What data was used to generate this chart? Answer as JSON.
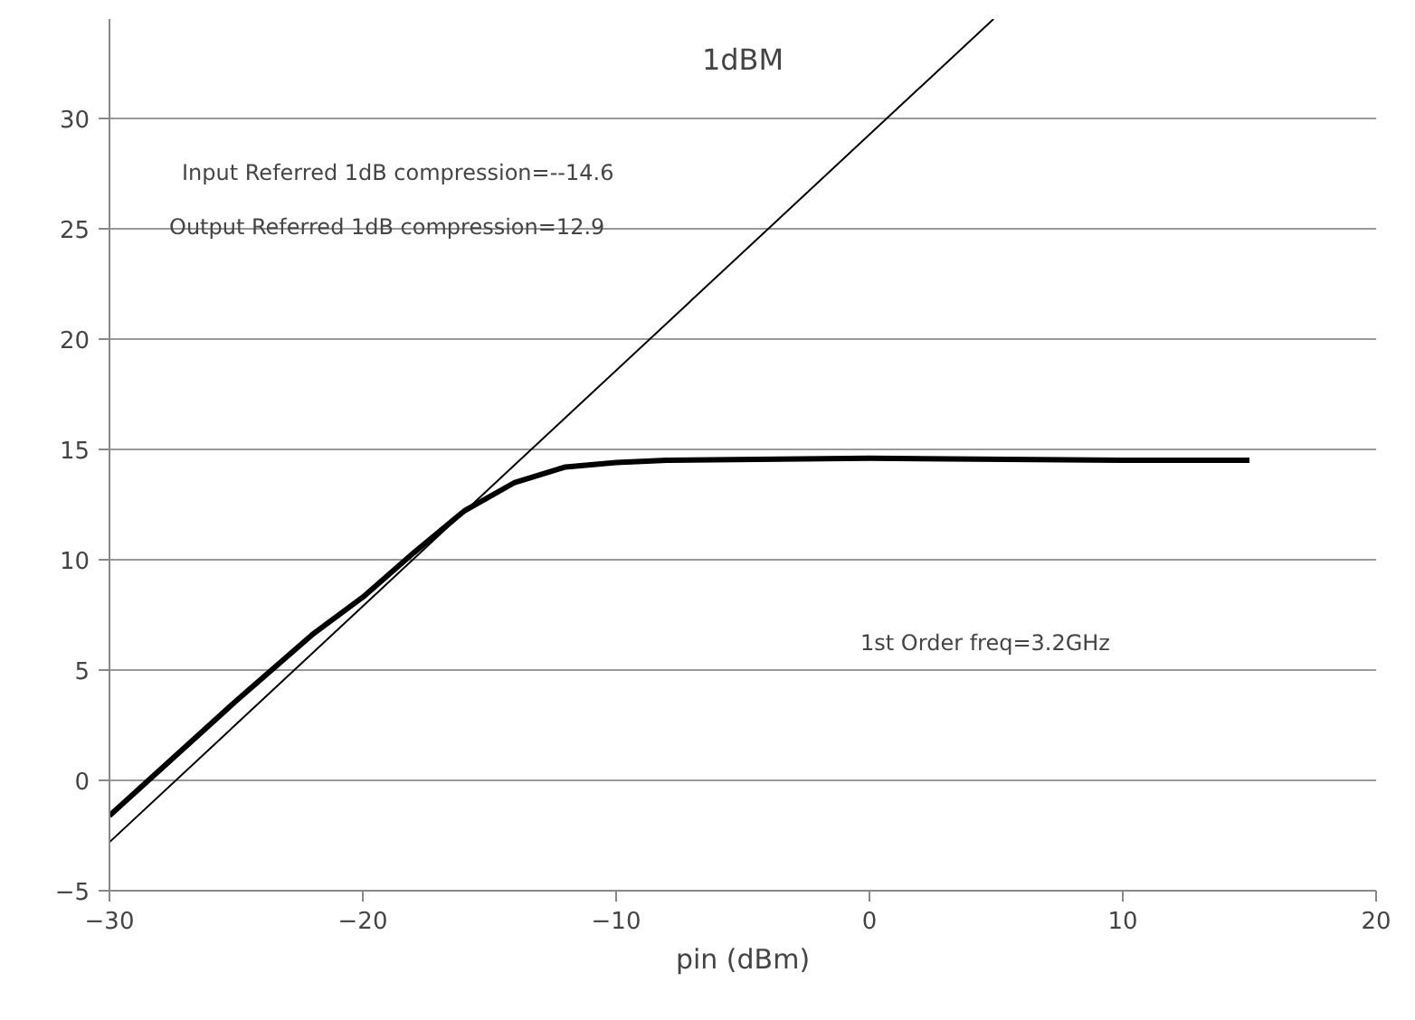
{
  "chart_data": {
    "type": "line",
    "title": "1dBM",
    "xlabel": "pin (dBm)",
    "xlim": [
      -30,
      20
    ],
    "xticks": [
      -30,
      -20,
      -10,
      0,
      10,
      20
    ],
    "ylim": [
      -5,
      34.5
    ],
    "yticks": [
      -5,
      0,
      5,
      10,
      15,
      20,
      25,
      30
    ],
    "grid": "y",
    "marker": "none",
    "series": [
      {
        "color": "#000000",
        "line_style": "solid",
        "x": [
          -30,
          -25,
          -22,
          -20,
          -18,
          -16,
          -14,
          -12,
          -10,
          -8,
          0,
          10,
          15
        ],
        "values": [
          -1.6,
          3.6,
          6.6,
          8.3,
          10.3,
          12.2,
          13.5,
          14.2,
          14.4,
          14.5,
          14.6,
          14.5,
          14.5
        ]
      },
      {
        "color": "#000000",
        "line_style": "solid",
        "x": [
          -30,
          4.9
        ],
        "values": [
          -2.8,
          34.5
        ]
      }
    ],
    "annotations": [
      "Input Referred  1dB compression=--14.6",
      "Output Referred 1dB compression=12.9",
      "1st Order freq=3.2GHz"
    ]
  }
}
